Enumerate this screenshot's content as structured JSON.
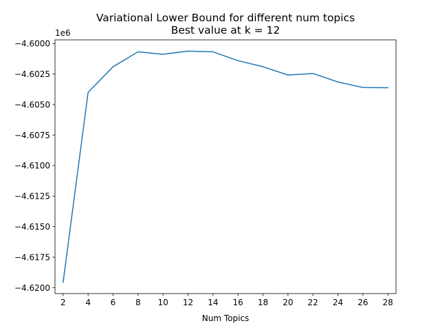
{
  "chart_data": {
    "type": "line",
    "title": "Variational Lower Bound for different num topics",
    "subtitle": "Best value at k = 12",
    "xlabel": "Num Topics",
    "ylabel": "",
    "y_offset_label": "1e6",
    "x": [
      2,
      4,
      6,
      8,
      10,
      12,
      14,
      16,
      18,
      20,
      22,
      24,
      26,
      28
    ],
    "series": [
      {
        "values": [
          -4.61955,
          -4.604,
          -4.6019,
          -4.60068,
          -4.60088,
          -4.60062,
          -4.60068,
          -4.6014,
          -4.6019,
          -4.60258,
          -4.60245,
          -4.60315,
          -4.6036,
          -4.60362
        ],
        "color": "#1f77b4"
      }
    ],
    "xlim": [
      1.35,
      28.65
    ],
    "ylim": [
      -4.62048,
      -4.5997
    ],
    "x_ticks": [
      2,
      4,
      6,
      8,
      10,
      12,
      14,
      16,
      18,
      20,
      22,
      24,
      26,
      28
    ],
    "x_tick_labels": [
      "2",
      "4",
      "6",
      "8",
      "10",
      "12",
      "14",
      "16",
      "18",
      "20",
      "22",
      "24",
      "26",
      "28"
    ],
    "y_ticks": [
      -4.6,
      -4.6025,
      -4.605,
      -4.6075,
      -4.61,
      -4.6125,
      -4.615,
      -4.6175,
      -4.62
    ],
    "y_tick_labels": [
      "−4.6000",
      "−4.6025",
      "−4.6050",
      "−4.6075",
      "−4.6100",
      "−4.6125",
      "−4.6150",
      "−4.6175",
      "−4.6200"
    ],
    "grid": false,
    "legend": "none"
  }
}
